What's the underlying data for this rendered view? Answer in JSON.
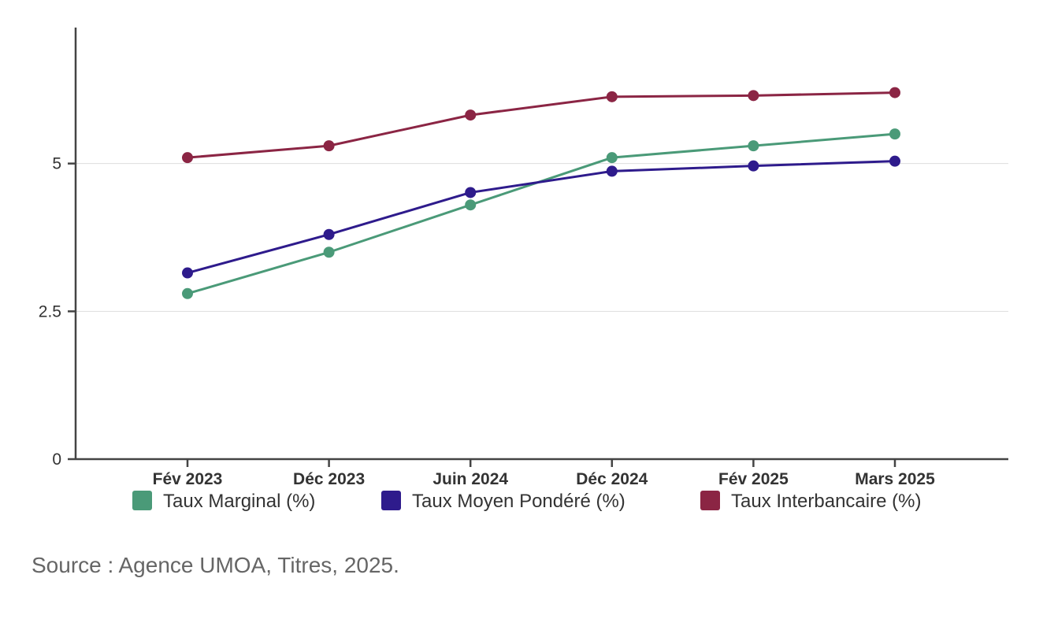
{
  "chart_data": {
    "type": "line",
    "categories": [
      "Fév 2023",
      "Déc 2023",
      "Juin 2024",
      "Déc 2024",
      "Fév 2025",
      "Mars 2025"
    ],
    "series": [
      {
        "name": "Taux Marginal (%)",
        "color": "#4a9a78",
        "values": [
          2.8,
          3.5,
          4.3,
          5.1,
          5.3,
          5.5
        ]
      },
      {
        "name": "Taux Moyen Pondéré (%)",
        "color": "#2e1b8c",
        "values": [
          3.15,
          3.8,
          4.51,
          4.87,
          4.96,
          5.04
        ]
      },
      {
        "name": "Taux Interbancaire (%)",
        "color": "#8b2544",
        "values": [
          5.1,
          5.3,
          5.82,
          6.13,
          6.15,
          6.2
        ]
      }
    ],
    "yticks": [
      0,
      2.5,
      5
    ],
    "ytick_labels": [
      "0",
      "2.5",
      "5"
    ],
    "ylim": [
      0,
      7.3
    ],
    "title": "",
    "xlabel": "",
    "ylabel": "",
    "grid": true,
    "legend_position": "bottom"
  },
  "source": "Source : Agence UMOA, Titres, 2025."
}
